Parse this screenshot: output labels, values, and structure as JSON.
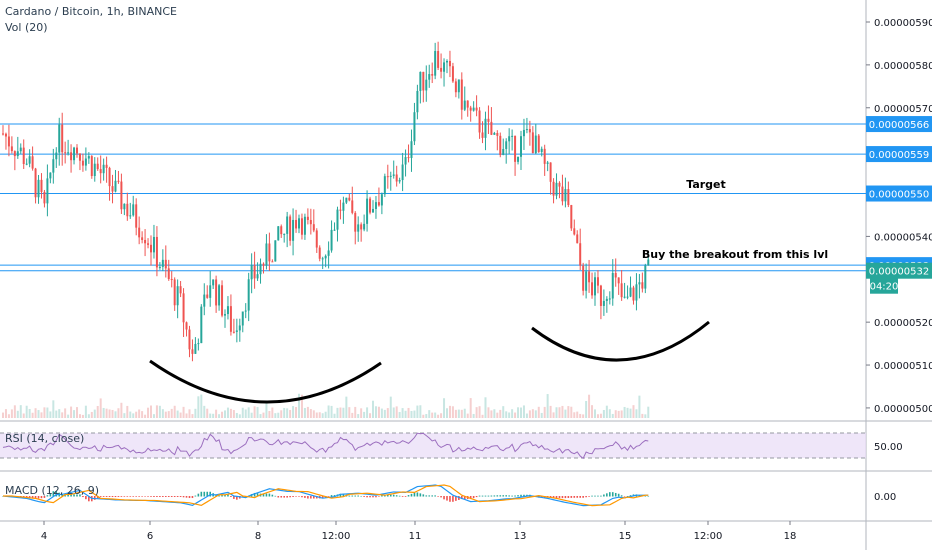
{
  "header": {
    "symbol_line": "Cardano / Bitcoin, 1h, BINANCE",
    "volume_label": "Vol (20)"
  },
  "colors": {
    "up": "#26a69a",
    "down": "#ef5350",
    "level": "#2196f3",
    "axis_text": "#131722",
    "rsi_band": "#e8dcf7",
    "rsi_line": "#9c6fbf",
    "macd_line": "#2196f3",
    "signal_line": "#ff9800",
    "curve": "#000000"
  },
  "chart_data": {
    "type": "candlestick",
    "title": "Cardano / Bitcoin, 1h, BINANCE",
    "price_axis": {
      "ticks": [
        "0.00000590",
        "0.00000580",
        "0.00000570",
        "0.00000540",
        "0.00000520",
        "0.00000510",
        "0.00000500"
      ],
      "ylim": [
        4.98e-06,
        5.93e-06
      ]
    },
    "time_axis": {
      "ticks": [
        "4",
        "6",
        "8",
        "12:00",
        "11",
        "13",
        "15",
        "12:00",
        "18"
      ]
    },
    "anchors": [
      {
        "i": 0,
        "p": 5.64
      },
      {
        "i": 8,
        "p": 5.58
      },
      {
        "i": 14,
        "p": 5.46
      },
      {
        "i": 18,
        "p": 5.63
      },
      {
        "i": 26,
        "p": 5.6
      },
      {
        "i": 34,
        "p": 5.54
      },
      {
        "i": 48,
        "p": 5.41
      },
      {
        "i": 60,
        "p": 5.24
      },
      {
        "i": 64,
        "p": 5.12
      },
      {
        "i": 70,
        "p": 5.3
      },
      {
        "i": 78,
        "p": 5.18
      },
      {
        "i": 84,
        "p": 5.3
      },
      {
        "i": 92,
        "p": 5.38
      },
      {
        "i": 100,
        "p": 5.45
      },
      {
        "i": 108,
        "p": 5.36
      },
      {
        "i": 114,
        "p": 5.47
      },
      {
        "i": 120,
        "p": 5.43
      },
      {
        "i": 126,
        "p": 5.49
      },
      {
        "i": 136,
        "p": 5.56
      },
      {
        "i": 140,
        "p": 5.74
      },
      {
        "i": 146,
        "p": 5.82
      },
      {
        "i": 152,
        "p": 5.76
      },
      {
        "i": 158,
        "p": 5.68
      },
      {
        "i": 166,
        "p": 5.63
      },
      {
        "i": 172,
        "p": 5.6
      },
      {
        "i": 178,
        "p": 5.64
      },
      {
        "i": 184,
        "p": 5.54
      },
      {
        "i": 190,
        "p": 5.48
      },
      {
        "i": 196,
        "p": 5.3
      },
      {
        "i": 202,
        "p": 5.26
      },
      {
        "i": 206,
        "p": 5.3
      },
      {
        "i": 210,
        "p": 5.24
      },
      {
        "i": 214,
        "p": 5.28
      },
      {
        "i": 218,
        "p": 5.32
      }
    ],
    "candle_count": 219,
    "levels": [
      {
        "price": "0.00000566",
        "value": 5.662,
        "bg": "#2196f3"
      },
      {
        "price": "0.00000559",
        "value": 5.592,
        "bg": "#2196f3"
      },
      {
        "price": "0.00000550",
        "value": 5.5,
        "bg": "#2196f3"
      },
      {
        "price": "0.00000533",
        "value": 5.333,
        "bg": "#2196f3"
      },
      {
        "price": "0.00000532",
        "value": 5.32,
        "bg": "#26a69a"
      }
    ],
    "countdown": "04:20",
    "annotations": {
      "target": "Target",
      "breakout": "Buy the breakout from this lvl"
    },
    "rsi": {
      "label": "RSI (14, close)",
      "tick": "50.00"
    },
    "macd": {
      "label": "MACD (12, 26, 9)",
      "tick": "0.00"
    }
  }
}
